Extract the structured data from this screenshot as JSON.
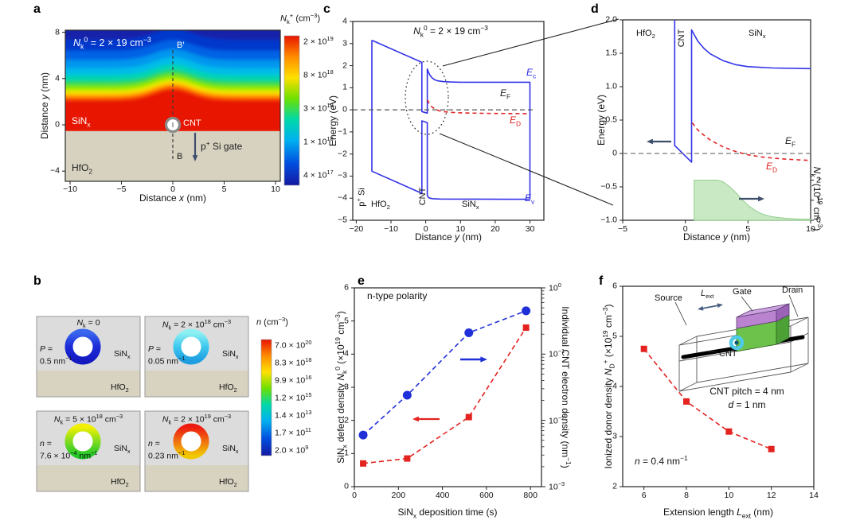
{
  "letters": {
    "a": "a",
    "b": "b",
    "c": "c",
    "d": "d",
    "e": "e",
    "f": "f"
  },
  "panel_a": {
    "annotation": "*N*_{k}^{0} = 2 × 19 cm^{−3}",
    "b_top": "B′",
    "b_bottom": "B",
    "region_sinx": "SiN_{x}",
    "region_hfo2": "HfO_{2}",
    "cnt": "CNT",
    "gate": "p^{+} Si gate",
    "xlabel": "Distance *x* (nm)",
    "ylabel": "Distance *y* (nm)",
    "xticks": [
      -10,
      -5,
      0,
      5,
      10
    ],
    "yticks": [
      8,
      4,
      0,
      -4
    ],
    "colorbar_title": "*N*_{k}^{+} (cm^{−3})",
    "colorbar_labels": [
      "2 × 10^{19}",
      "8 × 10^{18}",
      "3 × 10^{18}",
      "1 × 10^{18}",
      "4 × 10^{17}"
    ]
  },
  "panel_b": {
    "colorbar_title": "*n* (cm^{−3})",
    "colorbar_labels": [
      "7.0 × 10^{20}",
      "8.3 × 10^{18}",
      "9.9 × 10^{16}",
      "1.2 × 10^{15}",
      "1.4 × 10^{13}",
      "1.7 × 10^{11}",
      "2.0 × 10^{9}"
    ],
    "boxes": [
      {
        "title": "*N*_{k} = 0",
        "left1": "*P* =",
        "left2": "0.5 nm^{−1}",
        "sinx": "SiN_{x}",
        "hfo2": "HfO_{2}"
      },
      {
        "title": "*N*_{k} = 2 × 10^{18} cm^{−3}",
        "left1": "*P* =",
        "left2": "0.05 nm^{−1}",
        "sinx": "SiN_{x}",
        "hfo2": "HfO_{2}"
      },
      {
        "title": "*N*_{k} = 5 × 10^{18} cm^{−3}",
        "left1": "*n* =",
        "left2": "7.6 × 10^{−4} nm^{−1}",
        "sinx": "SiN_{x}",
        "hfo2": "HfO_{2}"
      },
      {
        "title": "*N*_{k} = 2 × 10^{19} cm^{−3}",
        "left1": "*n* =",
        "left2": "0.23 nm^{−1}",
        "sinx": "SiN_{x}",
        "hfo2": "HfO_{2}"
      }
    ]
  },
  "chart_data": [
    {
      "panel": "c",
      "type": "line",
      "title": "*N*_{k}^{0} = 2 × 19 cm^{−3}",
      "xlabel": "Distance *y* (nm)",
      "ylabel": "Energy (eV)",
      "xlim": [
        -21,
        34
      ],
      "ylim": [
        -5,
        4
      ],
      "xticks": [
        -20,
        -10,
        0,
        10,
        20,
        30
      ],
      "yticks": [
        -5,
        -4,
        -3,
        -2,
        -1,
        0,
        1,
        2,
        3,
        4
      ],
      "regions": {
        "psi": "p^{+} Si",
        "hfo2": "HfO_{2}",
        "cnt": "CNT",
        "sinx": "SiN_{x}"
      },
      "curve_labels": {
        "ec": "*E*_{c}",
        "ef": "*E*_{F}",
        "ed": "*E*_{D}",
        "ev": "*E*_{v}"
      },
      "series": [
        {
          "name": "conduction-band",
          "color": "#3232e8",
          "style": "solid",
          "points": [
            [
              -15.5,
              3.15
            ],
            [
              -1.1,
              2.15
            ],
            [
              -1.1,
              -0.08
            ],
            [
              0.45,
              -0.15
            ],
            [
              0.45,
              1.85
            ],
            [
              0.8,
              1.7
            ],
            [
              1.2,
              1.57
            ],
            [
              1.8,
              1.45
            ],
            [
              2.5,
              1.37
            ],
            [
              3.5,
              1.31
            ],
            [
              5,
              1.28
            ],
            [
              7,
              1.26
            ],
            [
              10,
              1.25
            ],
            [
              30,
              1.25
            ],
            [
              30,
              -4.05
            ]
          ]
        },
        {
          "name": "valence-band",
          "color": "#3232e8",
          "style": "solid",
          "points": [
            [
              -15.5,
              3.15
            ],
            [
              -15.5,
              -2.78
            ],
            [
              -1.1,
              -3.78
            ],
            [
              -1.1,
              -0.5
            ],
            [
              0.45,
              -0.58
            ],
            [
              0.45,
              -3.9
            ],
            [
              0.9,
              -3.98
            ],
            [
              1.8,
              -4.02
            ],
            [
              4,
              -4.04
            ],
            [
              30,
              -4.05
            ]
          ]
        },
        {
          "name": "fermi-level",
          "color": "#555555",
          "style": "dashed",
          "points": [
            [
              -21,
              0
            ],
            [
              31,
              0
            ]
          ]
        },
        {
          "name": "donor-level",
          "color": "#e02424",
          "style": "dashed",
          "points": [
            [
              0.5,
              0.45
            ],
            [
              1,
              0.28
            ],
            [
              1.5,
              0.18
            ],
            [
              2,
              0.1
            ],
            [
              3,
              0.01
            ],
            [
              4,
              -0.05
            ],
            [
              5,
              -0.08
            ],
            [
              7,
              -0.11
            ],
            [
              10,
              -0.135
            ],
            [
              15,
              -0.155
            ],
            [
              20,
              -0.165
            ],
            [
              25,
              -0.17
            ],
            [
              30,
              -0.175
            ]
          ]
        }
      ]
    },
    {
      "panel": "d",
      "type": "line",
      "xlabel": "Distance *y* (nm)",
      "ylabel": "Energy (eV)",
      "ylabel_right": "*N*_{k}^{+} (10^{19} cm^{−3})",
      "xlim": [
        -5,
        10
      ],
      "ylim": [
        -1,
        2
      ],
      "xticks": [
        -5,
        0,
        5,
        10
      ],
      "yticks": [
        -1,
        -0.5,
        0,
        0.5,
        1,
        1.5,
        2
      ],
      "yticks_labels": [
        "−1.0",
        "−0.5",
        "0",
        "0.5",
        "1.0",
        "1.5",
        "2.0"
      ],
      "y2ticks": [
        0,
        1,
        2
      ],
      "regions": {
        "hfo2": "HfO_{2}",
        "cnt": "CNT",
        "sinx": "SiN_{x}"
      },
      "curve_labels": {
        "ef": "*E*_{F}",
        "ed": "*E*_{D}"
      },
      "series": [
        {
          "name": "conduction-band",
          "color": "#3232e8",
          "style": "solid",
          "points": [
            [
              -0.85,
              2.0
            ],
            [
              -0.85,
              0.12
            ],
            [
              0.5,
              -0.13
            ],
            [
              0.5,
              1.85
            ],
            [
              1,
              1.68
            ],
            [
              1.5,
              1.57
            ],
            [
              2,
              1.49
            ],
            [
              3,
              1.39
            ],
            [
              4,
              1.33
            ],
            [
              5,
              1.3
            ],
            [
              7,
              1.28
            ],
            [
              10,
              1.27
            ]
          ]
        },
        {
          "name": "fermi-level",
          "color": "#777777",
          "style": "dashed",
          "points": [
            [
              -5,
              0
            ],
            [
              10,
              0
            ]
          ]
        },
        {
          "name": "donor-level",
          "color": "#e02424",
          "style": "dashed",
          "points": [
            [
              0.55,
              0.46
            ],
            [
              1,
              0.35
            ],
            [
              1.5,
              0.27
            ],
            [
              2,
              0.2
            ],
            [
              2.5,
              0.15
            ],
            [
              3,
              0.1
            ],
            [
              4,
              0.03
            ],
            [
              5,
              -0.02
            ],
            [
              6,
              -0.05
            ],
            [
              7,
              -0.07
            ],
            [
              8,
              -0.085
            ],
            [
              9,
              -0.095
            ],
            [
              10,
              -0.105
            ]
          ]
        }
      ],
      "area_series": {
        "name": "ionized-defect-density",
        "axis": "right",
        "fill": "#c9e9c4",
        "edge": "#8fcf8a",
        "points_x_n": [
          [
            0.7,
            0
          ],
          [
            0.7,
            2.0
          ],
          [
            2.6,
            2.0
          ],
          [
            3.0,
            1.92
          ],
          [
            3.5,
            1.7
          ],
          [
            4.0,
            1.4
          ],
          [
            4.5,
            1.05
          ],
          [
            5.0,
            0.75
          ],
          [
            5.5,
            0.52
          ],
          [
            6.0,
            0.35
          ],
          [
            6.5,
            0.24
          ],
          [
            7.0,
            0.17
          ],
          [
            8.0,
            0.1
          ],
          [
            9.0,
            0.06
          ],
          [
            10,
            0.05
          ],
          [
            10,
            0
          ]
        ]
      }
    },
    {
      "panel": "e",
      "type": "scatter-line",
      "inner_title": "n-type polarity",
      "xlabel": "SiN_{x} deposition time (s)",
      "ylabel": "SiN_{x} defect density *N*_{k}^{0} (×10^{19} cm^{−3})",
      "ylabel_right": "Individual CNT electron density (nm^{−1})",
      "xlim": [
        0,
        850
      ],
      "ylim": [
        0,
        6
      ],
      "xticks": [
        0,
        200,
        400,
        600,
        800
      ],
      "yticks": [
        0,
        1,
        2,
        3,
        4,
        5,
        6
      ],
      "y2_scale": "log",
      "y2_labels": [
        "10^{0}",
        "10^{−1}",
        "10^{−2}",
        "10^{−3}"
      ],
      "series": [
        {
          "name": "sinx-defect-density",
          "axis": "left",
          "color": "#e42320",
          "marker": "square",
          "x": [
            40,
            240,
            520,
            780
          ],
          "y": [
            0.7,
            0.85,
            2.1,
            4.8
          ]
        },
        {
          "name": "cnt-electron-density",
          "axis": "right",
          "color": "#2030d8",
          "marker": "circle",
          "x": [
            40,
            240,
            520,
            780
          ],
          "y": [
            0.006,
            0.024,
            0.21,
            0.45
          ]
        }
      ]
    },
    {
      "panel": "f",
      "type": "scatter-line",
      "xlabel": "Extension length *L*_{ext} (nm)",
      "ylabel": "Ionized donor density *N*_{D}^{+} (×10^{19} cm^{−3})",
      "xlim": [
        5,
        14
      ],
      "ylim": [
        2,
        6
      ],
      "xticks": [
        6,
        8,
        10,
        12,
        14
      ],
      "yticks": [
        2,
        3,
        4,
        5,
        6
      ],
      "annotations": {
        "n": "*n* = 0.4 nm^{−1}",
        "pitch": "CNT pitch = 4 nm",
        "d": "*d* = 1 nm"
      },
      "inset": {
        "source": "Source",
        "gate": "Gate",
        "drain": "Drain",
        "cnt": "CNT",
        "lext": "*L*_{ext}"
      },
      "series": [
        {
          "name": "ionized-donor-density",
          "color": "#e42320",
          "marker": "square",
          "x": [
            6,
            8,
            10,
            12
          ],
          "y": [
            4.75,
            3.7,
            3.1,
            2.75
          ]
        }
      ]
    }
  ]
}
